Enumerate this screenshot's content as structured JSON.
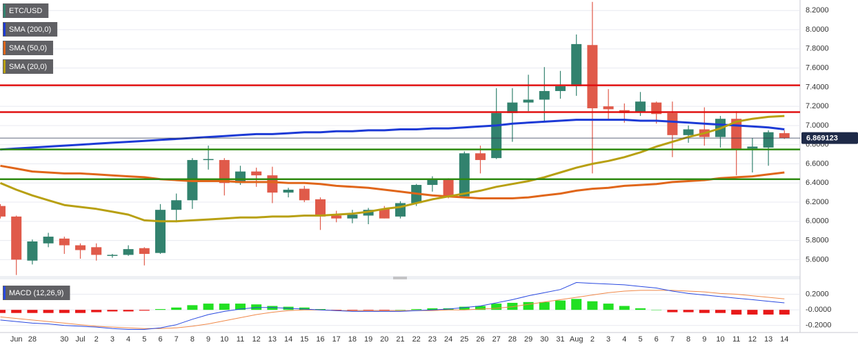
{
  "chart_data": [
    {
      "type": "candlestick",
      "categories": [
        null,
        "Jun",
        "28",
        null,
        "30",
        "Jul",
        "2",
        "3",
        "4",
        "5",
        "6",
        "7",
        "8",
        "9",
        "10",
        "11",
        "12",
        "13",
        "14",
        "15",
        "16",
        "17",
        "18",
        "19",
        "20",
        "21",
        "22",
        "23",
        "24",
        "25",
        "26",
        "27",
        "28",
        "29",
        "30",
        "31",
        "Aug",
        "2",
        "3",
        "4",
        "5",
        "6",
        "7",
        "8",
        "9",
        "10",
        "11",
        "12",
        "13",
        "14"
      ],
      "candles": {
        "name": "ETC/USD",
        "color_up": "#32826e",
        "color_down": "#e05a4a",
        "open": [
          6.16,
          6.05,
          5.59,
          5.77,
          5.82,
          5.75,
          5.73,
          5.64,
          5.65,
          5.72,
          5.67,
          6.12,
          6.22,
          6.64,
          6.64,
          6.4,
          6.52,
          6.48,
          6.3,
          6.34,
          6.23,
          6.06,
          6.03,
          6.06,
          6.13,
          6.05,
          6.19,
          6.38,
          6.44,
          6.26,
          6.71,
          6.66,
          7.13,
          7.24,
          7.27,
          7.36,
          7.41,
          7.84,
          7.2,
          7.16,
          7.14,
          7.24,
          7.13,
          6.9,
          6.96,
          6.88,
          7.07,
          6.76,
          6.77,
          6.92
        ],
        "high": [
          6.18,
          6.06,
          5.81,
          5.88,
          5.84,
          5.77,
          5.77,
          5.66,
          5.75,
          5.73,
          6.18,
          6.29,
          6.66,
          6.79,
          6.66,
          6.58,
          6.56,
          6.57,
          6.35,
          6.37,
          6.25,
          6.11,
          6.12,
          6.14,
          6.16,
          6.21,
          6.39,
          6.47,
          6.45,
          6.73,
          6.79,
          7.39,
          7.39,
          7.53,
          7.61,
          7.57,
          7.95,
          8.29,
          7.38,
          7.23,
          7.35,
          7.25,
          7.25,
          7.0,
          7.19,
          7.1,
          7.15,
          6.87,
          6.95,
          6.95
        ],
        "low": [
          6.03,
          5.44,
          5.55,
          5.73,
          5.66,
          5.61,
          5.59,
          5.62,
          5.64,
          5.54,
          5.66,
          5.99,
          6.13,
          6.54,
          6.27,
          6.38,
          6.36,
          6.19,
          6.25,
          6.2,
          5.91,
          5.99,
          5.98,
          5.97,
          6.03,
          6.03,
          6.16,
          6.31,
          6.24,
          6.25,
          6.5,
          6.65,
          6.83,
          7.15,
          7.04,
          7.28,
          7.31,
          6.5,
          7.05,
          7.03,
          7.1,
          7.02,
          6.67,
          6.82,
          6.79,
          6.77,
          6.48,
          6.51,
          6.58,
          6.86
        ],
        "close": [
          6.05,
          5.6,
          5.79,
          5.84,
          5.75,
          5.7,
          5.65,
          5.65,
          5.71,
          5.66,
          6.12,
          6.22,
          6.64,
          6.65,
          6.4,
          6.52,
          6.48,
          6.3,
          6.33,
          6.22,
          6.05,
          6.03,
          6.07,
          6.12,
          6.03,
          6.19,
          6.38,
          6.44,
          6.26,
          6.71,
          6.64,
          7.13,
          7.24,
          7.27,
          7.36,
          7.41,
          7.85,
          7.18,
          7.17,
          7.13,
          7.25,
          7.12,
          6.9,
          6.96,
          6.88,
          7.07,
          6.75,
          6.78,
          6.93,
          6.869123
        ]
      },
      "series": [
        {
          "name": "SMA (200,0)",
          "color": "#1c3ad6",
          "values": [
            6.75,
            6.76,
            6.77,
            6.78,
            6.79,
            6.8,
            6.81,
            6.82,
            6.83,
            6.84,
            6.85,
            6.86,
            6.87,
            6.88,
            6.89,
            6.9,
            6.91,
            6.91,
            6.92,
            6.93,
            6.93,
            6.94,
            6.94,
            6.95,
            6.95,
            6.96,
            6.96,
            6.97,
            6.97,
            6.98,
            6.99,
            7.0,
            7.02,
            7.03,
            7.04,
            7.05,
            7.06,
            7.06,
            7.06,
            7.06,
            7.05,
            7.05,
            7.04,
            7.03,
            7.02,
            7.01,
            7.0,
            6.99,
            6.98,
            6.96
          ]
        },
        {
          "name": "SMA (50,0)",
          "color": "#e0661a",
          "values": [
            6.58,
            6.55,
            6.52,
            6.51,
            6.5,
            6.5,
            6.49,
            6.48,
            6.47,
            6.46,
            6.44,
            6.43,
            6.42,
            6.42,
            6.42,
            6.41,
            6.41,
            6.41,
            6.4,
            6.4,
            6.39,
            6.37,
            6.36,
            6.35,
            6.33,
            6.31,
            6.29,
            6.27,
            6.26,
            6.25,
            6.24,
            6.24,
            6.24,
            6.25,
            6.27,
            6.29,
            6.32,
            6.34,
            6.35,
            6.37,
            6.38,
            6.39,
            6.41,
            6.42,
            6.43,
            6.45,
            6.46,
            6.47,
            6.49,
            6.51
          ]
        },
        {
          "name": "SMA (20,0)",
          "color": "#b8a012",
          "values": [
            6.4,
            6.33,
            6.27,
            6.22,
            6.17,
            6.15,
            6.13,
            6.1,
            6.07,
            6.01,
            6.0,
            6.0,
            6.01,
            6.02,
            6.03,
            6.04,
            6.04,
            6.05,
            6.05,
            6.06,
            6.06,
            6.07,
            6.08,
            6.1,
            6.13,
            6.15,
            6.19,
            6.23,
            6.26,
            6.29,
            6.32,
            6.36,
            6.39,
            6.42,
            6.46,
            6.51,
            6.56,
            6.6,
            6.63,
            6.67,
            6.72,
            6.78,
            6.83,
            6.88,
            6.92,
            6.97,
            7.04,
            7.07,
            7.09,
            7.1
          ]
        }
      ],
      "levels": [
        {
          "value": 7.42,
          "color": "#e01010"
        },
        {
          "value": 7.14,
          "color": "#e01010"
        },
        {
          "value": 6.75,
          "color": "#2e8a10"
        },
        {
          "value": 6.44,
          "color": "#2e8a10"
        }
      ],
      "last_price": 6.869123,
      "ylim": [
        5.43,
        8.31
      ],
      "yticks": [
        {
          "value": 5.6,
          "label": "5.6000"
        },
        {
          "value": 5.8,
          "label": "5.8000"
        },
        {
          "value": 6.0,
          "label": "6.0000"
        },
        {
          "value": 6.2,
          "label": "6.2000"
        },
        {
          "value": 6.4,
          "label": "6.4000"
        },
        {
          "value": 6.6,
          "label": "6.6000"
        },
        {
          "value": 6.8,
          "label": "6.8000"
        },
        {
          "value": 7.0,
          "label": "7.0000"
        },
        {
          "value": 7.2,
          "label": "7.2000"
        },
        {
          "value": 7.4,
          "label": "7.4000"
        },
        {
          "value": 7.6,
          "label": "7.6000"
        },
        {
          "value": 7.8,
          "label": "7.8000"
        },
        {
          "value": 8.0,
          "label": "8.0000"
        },
        {
          "value": 8.2,
          "label": "8.2000"
        }
      ],
      "grid": true
    },
    {
      "type": "macd",
      "title": "MACD (12,26,9)",
      "histogram": {
        "color_up": "#22e022",
        "color_down": "#e81818",
        "values": [
          -0.04,
          -0.04,
          -0.04,
          -0.04,
          -0.04,
          -0.04,
          -0.03,
          -0.02,
          -0.02,
          -0.01,
          0.01,
          0.03,
          0.06,
          0.08,
          0.08,
          0.08,
          0.07,
          0.05,
          0.04,
          0.03,
          0.01,
          -0.01,
          -0.01,
          -0.01,
          -0.01,
          0.0,
          0.01,
          0.02,
          0.02,
          0.04,
          0.05,
          0.08,
          0.09,
          0.1,
          0.1,
          0.12,
          0.14,
          0.11,
          0.08,
          0.05,
          0.02,
          0.0,
          -0.03,
          -0.03,
          -0.04,
          -0.04,
          -0.06,
          -0.06,
          -0.06,
          -0.06
        ]
      },
      "macd_line": {
        "color": "#2848e0",
        "values": [
          -0.13,
          -0.15,
          -0.17,
          -0.18,
          -0.2,
          -0.21,
          -0.22,
          -0.24,
          -0.25,
          -0.25,
          -0.23,
          -0.19,
          -0.12,
          -0.06,
          -0.02,
          0.01,
          0.03,
          0.03,
          0.02,
          0.01,
          0.0,
          -0.01,
          -0.02,
          -0.02,
          -0.02,
          -0.02,
          -0.01,
          0.0,
          0.01,
          0.03,
          0.05,
          0.09,
          0.13,
          0.18,
          0.22,
          0.26,
          0.35,
          0.34,
          0.33,
          0.32,
          0.3,
          0.28,
          0.24,
          0.21,
          0.19,
          0.17,
          0.15,
          0.13,
          0.11,
          0.09
        ]
      },
      "signal_line": {
        "color": "#f08848",
        "values": [
          -0.09,
          -0.11,
          -0.13,
          -0.15,
          -0.17,
          -0.19,
          -0.21,
          -0.22,
          -0.23,
          -0.24,
          -0.24,
          -0.23,
          -0.21,
          -0.18,
          -0.14,
          -0.1,
          -0.06,
          -0.03,
          -0.01,
          0.0,
          0.0,
          -0.01,
          -0.01,
          -0.01,
          -0.01,
          -0.01,
          -0.01,
          -0.01,
          0.0,
          0.0,
          0.01,
          0.02,
          0.04,
          0.07,
          0.1,
          0.13,
          0.16,
          0.19,
          0.22,
          0.24,
          0.25,
          0.25,
          0.25,
          0.24,
          0.23,
          0.21,
          0.2,
          0.18,
          0.16,
          0.14
        ]
      },
      "ylim": [
        -0.29,
        0.39
      ],
      "yticks": [
        {
          "value": 0.2,
          "label": "0.2000"
        },
        {
          "value": 0,
          "label": "-0.0000"
        },
        {
          "value": -0.2,
          "label": "-0.2000"
        }
      ],
      "grid": true
    }
  ]
}
